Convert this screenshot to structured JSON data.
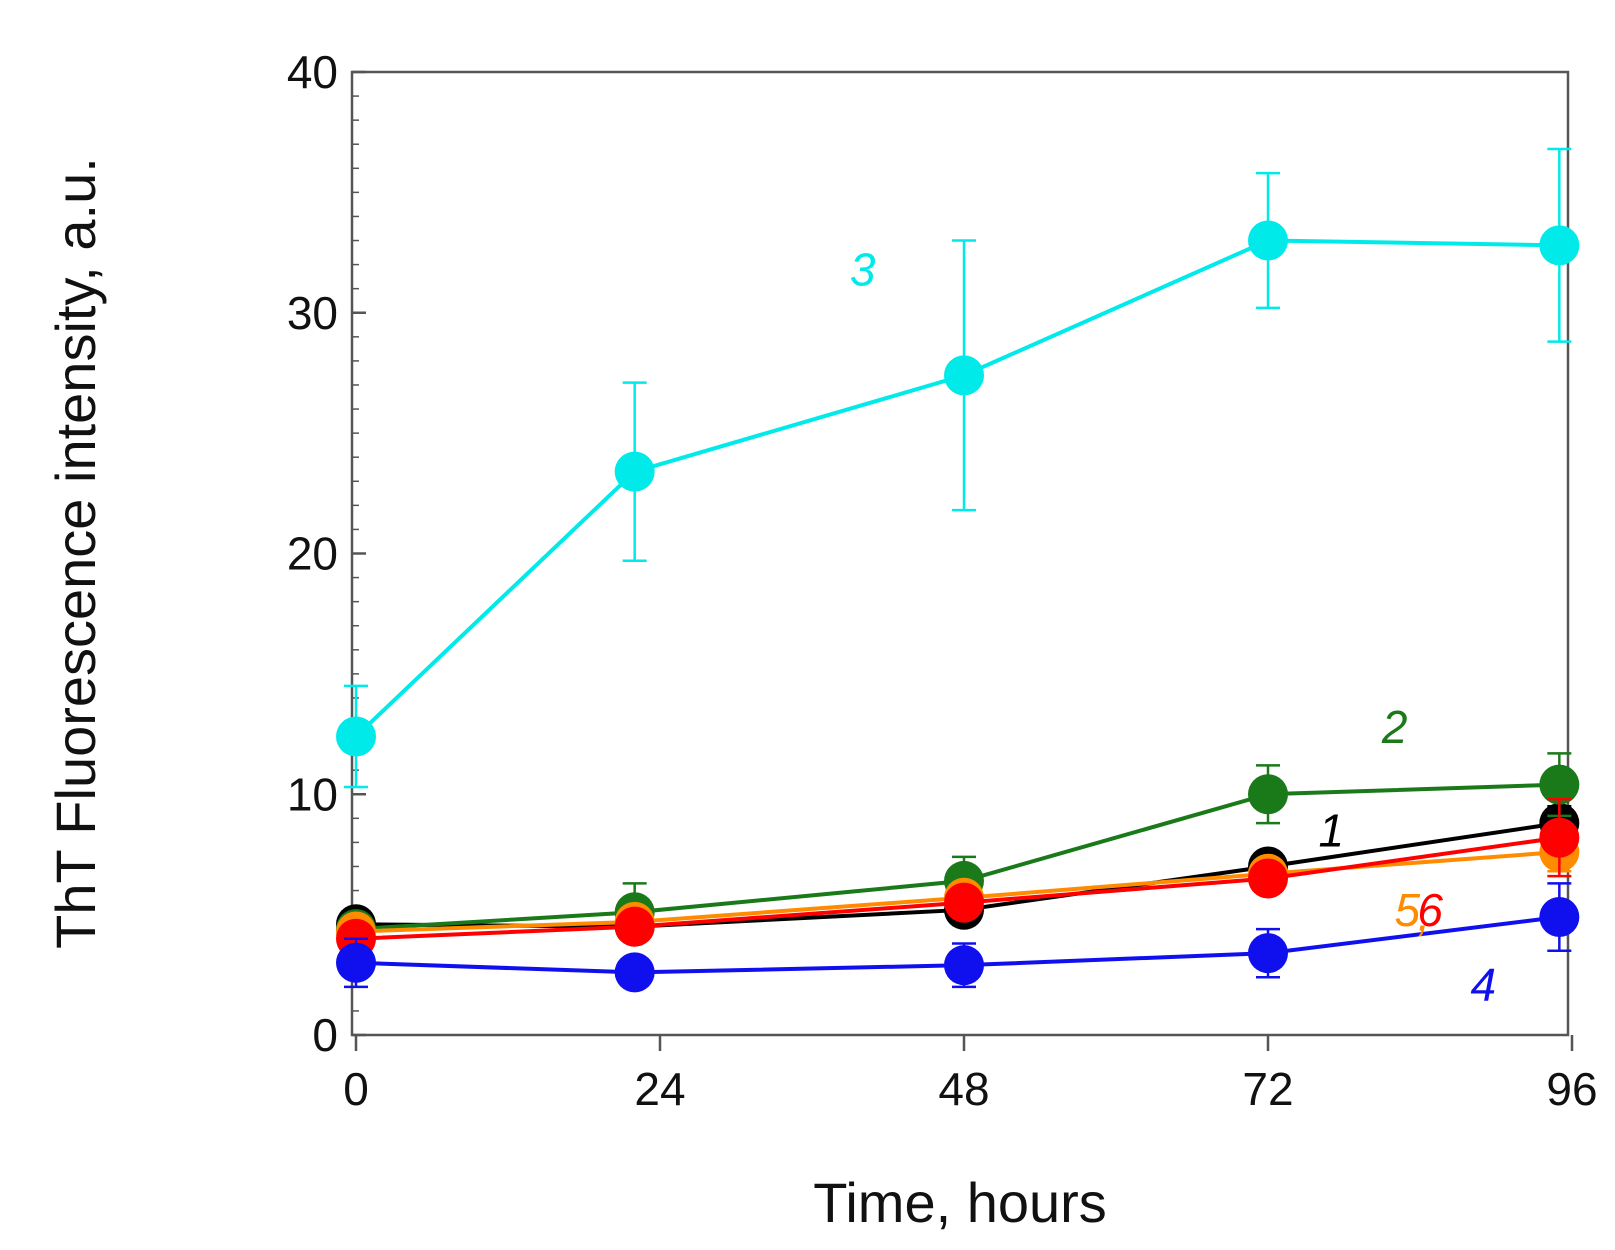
{
  "chart_data": {
    "type": "line",
    "title": "",
    "xlabel": "Time, hours",
    "ylabel": "ThT Fluorescence intensity, a.u.",
    "xlim": [
      0,
      96
    ],
    "ylim": [
      0,
      40
    ],
    "x_ticks": [
      0,
      24,
      48,
      72,
      96
    ],
    "y_ticks": [
      0,
      10,
      20,
      30,
      40
    ],
    "grid": false,
    "series": [
      {
        "name": "1",
        "color": "#000000",
        "x": [
          0,
          22,
          48,
          72,
          95
        ],
        "y": [
          4.6,
          4.5,
          5.2,
          7.0,
          8.8
        ],
        "err": [
          0.3,
          0.4,
          0.5,
          0.5,
          0.7
        ],
        "label_x": 77,
        "label_y": 8.5
      },
      {
        "name": "2",
        "color": "#1a7a1a",
        "x": [
          0,
          22,
          48,
          72,
          95
        ],
        "y": [
          4.4,
          5.1,
          6.4,
          10.0,
          10.4
        ],
        "err": [
          0.4,
          1.2,
          1.0,
          1.2,
          1.3
        ],
        "label_x": 82,
        "label_y": 12.8
      },
      {
        "name": "3",
        "color": "#00eaea",
        "x": [
          0,
          22,
          48,
          72,
          95
        ],
        "y": [
          12.4,
          23.4,
          27.4,
          33.0,
          32.8
        ],
        "err": [
          2.1,
          3.7,
          5.6,
          2.8,
          4.0
        ],
        "label_x": 40,
        "label_y": 31.8
      },
      {
        "name": "4",
        "color": "#1010ee",
        "x": [
          0,
          22,
          48,
          72,
          95
        ],
        "y": [
          3.0,
          2.6,
          2.9,
          3.4,
          4.9
        ],
        "err": [
          1.0,
          0.4,
          0.9,
          1.0,
          1.4
        ],
        "label_x": 89,
        "label_y": 2.1
      },
      {
        "name": "5",
        "color": "#ff8c00",
        "x": [
          0,
          22,
          48,
          72,
          95
        ],
        "y": [
          4.3,
          4.7,
          5.7,
          6.7,
          7.6
        ],
        "err": [
          0.3,
          0.4,
          0.5,
          0.5,
          0.8
        ],
        "label_x": 83,
        "label_y": 5.2
      },
      {
        "name": "6",
        "color": "#ff0000",
        "x": [
          0,
          22,
          48,
          72,
          95
        ],
        "y": [
          4.0,
          4.5,
          5.5,
          6.5,
          8.2
        ],
        "err": [
          0.3,
          0.4,
          0.5,
          0.6,
          1.6
        ],
        "label_x": 84.8,
        "label_y": 5.2
      }
    ],
    "annotations": [
      {
        "text": "3",
        "series": "3"
      },
      {
        "text": "2",
        "series": "2"
      },
      {
        "text": "1",
        "series": "1"
      },
      {
        "text": "5",
        "series": "5"
      },
      {
        "text": ",",
        "series": "5"
      },
      {
        "text": "6",
        "series": "6"
      },
      {
        "text": "4",
        "series": "4"
      }
    ]
  }
}
